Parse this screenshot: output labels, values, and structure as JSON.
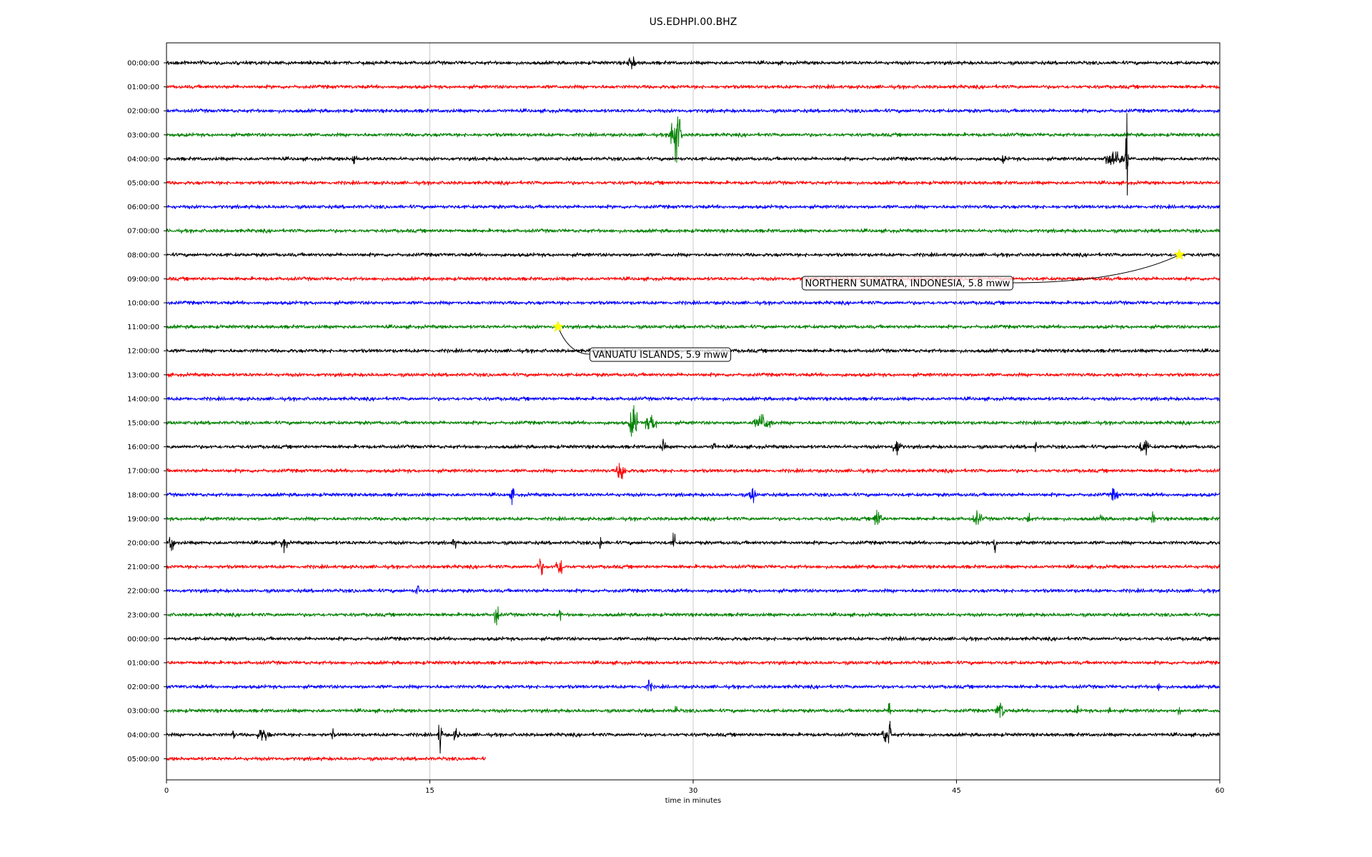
{
  "chart_data": {
    "type": "line",
    "title": "US.EDHPI.00.BHZ",
    "xlabel": "time in minutes",
    "xlim": [
      0,
      60
    ],
    "x_ticks": [
      0,
      15,
      30,
      45,
      60
    ],
    "grid": "vertical",
    "row_labels": [
      "00:00:00",
      "01:00:00",
      "02:00:00",
      "03:00:00",
      "04:00:00",
      "05:00:00",
      "06:00:00",
      "07:00:00",
      "08:00:00",
      "09:00:00",
      "10:00:00",
      "11:00:00",
      "12:00:00",
      "13:00:00",
      "14:00:00",
      "15:00:00",
      "16:00:00",
      "17:00:00",
      "18:00:00",
      "19:00:00",
      "20:00:00",
      "21:00:00",
      "22:00:00",
      "23:00:00",
      "00:00:00",
      "01:00:00",
      "02:00:00",
      "03:00:00",
      "04:00:00",
      "05:00:00"
    ],
    "color_cycle": [
      "#000000",
      "#ff0000",
      "#0000ff",
      "#008000"
    ],
    "last_row_end_minute": 18.2,
    "bursts": [
      [
        0,
        26.5,
        0.25,
        1.6
      ],
      [
        3,
        29.0,
        0.35,
        8.0
      ],
      [
        4,
        10.7,
        0.15,
        1.5
      ],
      [
        4,
        47.7,
        0.1,
        1.0
      ],
      [
        4,
        54.0,
        0.6,
        2.5
      ],
      [
        4,
        54.7,
        0.05,
        12.0
      ],
      [
        15,
        26.6,
        0.25,
        5.0
      ],
      [
        15,
        27.6,
        0.4,
        2.0
      ],
      [
        15,
        34.0,
        0.6,
        2.0
      ],
      [
        16,
        28.3,
        0.1,
        2.0
      ],
      [
        16,
        31.2,
        0.1,
        1.2
      ],
      [
        16,
        41.6,
        0.3,
        2.0
      ],
      [
        16,
        55.7,
        0.3,
        2.0
      ],
      [
        16,
        49.5,
        0.1,
        1.0
      ],
      [
        17,
        25.9,
        0.3,
        2.5
      ],
      [
        18,
        19.7,
        0.1,
        1.8
      ],
      [
        18,
        33.4,
        0.2,
        2.0
      ],
      [
        18,
        54.0,
        0.2,
        1.8
      ],
      [
        19,
        40.5,
        0.25,
        2.5
      ],
      [
        19,
        46.2,
        0.3,
        1.5
      ],
      [
        19,
        49.1,
        0.15,
        1.4
      ],
      [
        19,
        53.3,
        0.1,
        1.5
      ],
      [
        19,
        56.2,
        0.1,
        1.4
      ],
      [
        20,
        0.3,
        0.15,
        2.5
      ],
      [
        20,
        6.7,
        0.2,
        1.6
      ],
      [
        20,
        24.7,
        0.05,
        3.0
      ],
      [
        20,
        28.9,
        0.05,
        4.0
      ],
      [
        20,
        47.2,
        0.05,
        3.5
      ],
      [
        20,
        16.4,
        0.1,
        1.2
      ],
      [
        21,
        21.3,
        0.15,
        2.5
      ],
      [
        21,
        22.4,
        0.3,
        2.2
      ],
      [
        22,
        14.3,
        0.1,
        1.6
      ],
      [
        23,
        18.8,
        0.1,
        4.0
      ],
      [
        23,
        22.4,
        0.05,
        2.0
      ],
      [
        26,
        27.5,
        0.15,
        1.5
      ],
      [
        26,
        56.5,
        0.05,
        1.0
      ],
      [
        27,
        41.2,
        0.05,
        5.0
      ],
      [
        27,
        47.5,
        0.3,
        2.0
      ],
      [
        27,
        51.9,
        0.05,
        1.5
      ],
      [
        27,
        53.7,
        0.05,
        1.5
      ],
      [
        27,
        57.7,
        0.05,
        1.2
      ],
      [
        27,
        29.0,
        0.1,
        1.0
      ],
      [
        28,
        3.8,
        0.05,
        1.6
      ],
      [
        28,
        5.5,
        0.4,
        1.5
      ],
      [
        28,
        9.5,
        0.05,
        1.5
      ],
      [
        28,
        15.6,
        0.1,
        5.0
      ],
      [
        28,
        16.5,
        0.2,
        1.2
      ],
      [
        28,
        41.0,
        0.3,
        2.0
      ],
      [
        28,
        41.2,
        0.05,
        5.0
      ]
    ],
    "events": [
      {
        "label": "NORTHERN SUMATRA, INDONESIA, 5.8 mww",
        "row": 8,
        "minute": 57.7
      },
      {
        "label": "VANUATU ISLANDS, 5.9 mww",
        "row": 11,
        "minute": 22.3
      }
    ],
    "event_marker_color": "#ffff00"
  }
}
